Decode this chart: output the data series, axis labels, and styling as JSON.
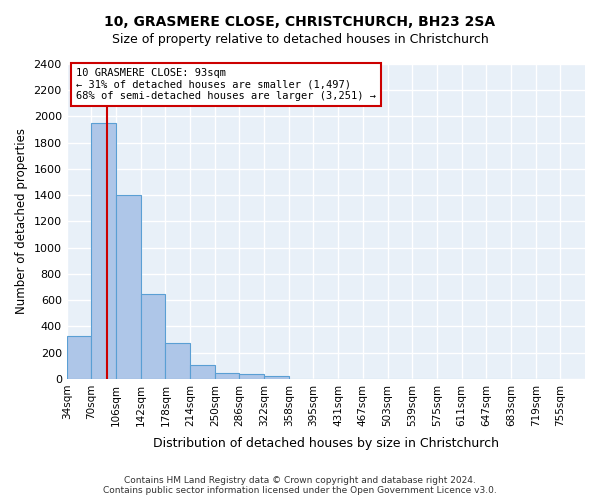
{
  "title1": "10, GRASMERE CLOSE, CHRISTCHURCH, BH23 2SA",
  "title2": "Size of property relative to detached houses in Christchurch",
  "xlabel": "Distribution of detached houses by size in Christchurch",
  "ylabel": "Number of detached properties",
  "footnote": "Contains HM Land Registry data © Crown copyright and database right 2024.\nContains public sector information licensed under the Open Government Licence v3.0.",
  "bin_labels": [
    "34sqm",
    "70sqm",
    "106sqm",
    "142sqm",
    "178sqm",
    "214sqm",
    "250sqm",
    "286sqm",
    "322sqm",
    "358sqm",
    "395sqm",
    "431sqm",
    "467sqm",
    "503sqm",
    "539sqm",
    "575sqm",
    "611sqm",
    "647sqm",
    "683sqm",
    "719sqm",
    "755sqm"
  ],
  "bar_heights": [
    325,
    1950,
    1400,
    645,
    275,
    105,
    48,
    40,
    25,
    0,
    0,
    0,
    0,
    0,
    0,
    0,
    0,
    0,
    0,
    0
  ],
  "ylim": [
    0,
    2400
  ],
  "yticks": [
    0,
    200,
    400,
    600,
    800,
    1000,
    1200,
    1400,
    1600,
    1800,
    2000,
    2200,
    2400
  ],
  "bar_color": "#aec6e8",
  "bar_edge_color": "#5a9fd4",
  "vline_color": "#cc0000",
  "annotation_text": "10 GRASMERE CLOSE: 93sqm\n← 31% of detached houses are smaller (1,497)\n68% of semi-detached houses are larger (3,251) →",
  "annotation_box_color": "#cc0000",
  "property_size_sqm": 93,
  "background_color": "#e8f0f8",
  "grid_color": "#ffffff",
  "figsize": [
    6.0,
    5.0
  ],
  "dpi": 100
}
